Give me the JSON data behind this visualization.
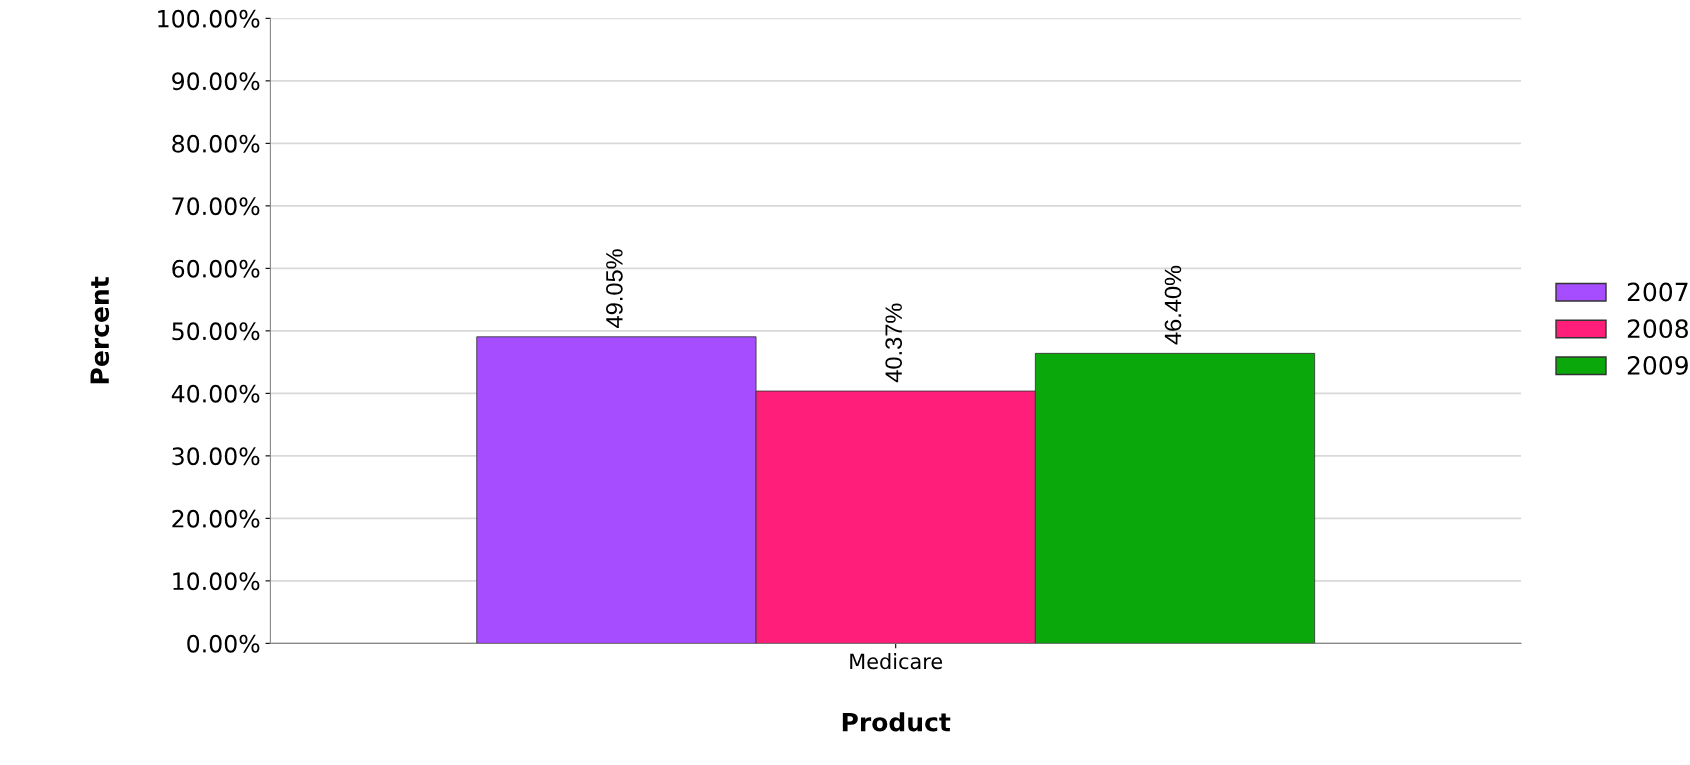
{
  "chart_data": {
    "type": "bar",
    "xlabel": "Product",
    "ylabel": "Percent",
    "categories": [
      "Medicare"
    ],
    "series": [
      {
        "name": "2007",
        "color": "#a64dff",
        "values": [
          49.05
        ],
        "value_labels": [
          "49.05%"
        ]
      },
      {
        "name": "2008",
        "color": "#ff1f7a",
        "values": [
          40.37
        ],
        "value_labels": [
          "40.37%"
        ]
      },
      {
        "name": "2009",
        "color": "#0aa80a",
        "values": [
          46.4
        ],
        "value_labels": [
          "46.40%"
        ]
      }
    ],
    "ylim": [
      0,
      100
    ],
    "yticks": [
      {
        "value": 0,
        "label": "0.00%"
      },
      {
        "value": 10,
        "label": "10.00%"
      },
      {
        "value": 20,
        "label": "20.00%"
      },
      {
        "value": 30,
        "label": "30.00%"
      },
      {
        "value": 40,
        "label": "40.00%"
      },
      {
        "value": 50,
        "label": "50.00%"
      },
      {
        "value": 60,
        "label": "60.00%"
      },
      {
        "value": 70,
        "label": "70.00%"
      },
      {
        "value": 80,
        "label": "80.00%"
      },
      {
        "value": 90,
        "label": "90.00%"
      },
      {
        "value": 100,
        "label": "100.00%"
      }
    ],
    "grid": "y",
    "legend": "right"
  }
}
